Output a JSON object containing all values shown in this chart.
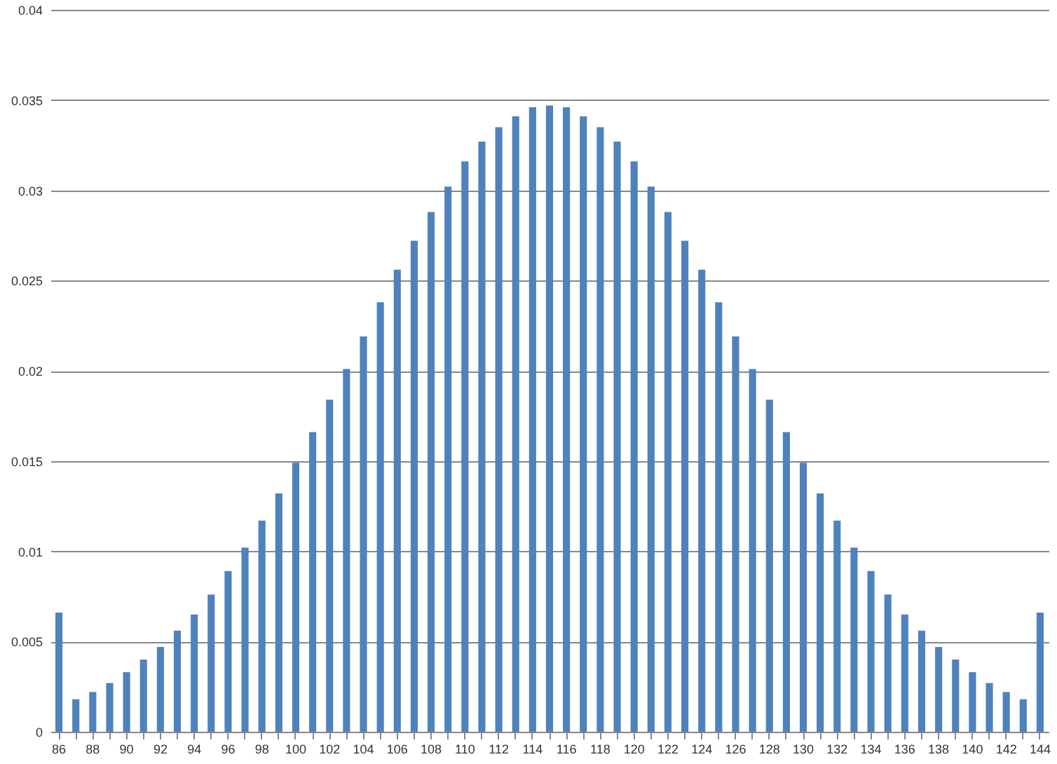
{
  "chart_data": {
    "type": "bar",
    "categories": [
      "86",
      null,
      "88",
      null,
      "90",
      null,
      "92",
      null,
      "94",
      null,
      "96",
      null,
      "98",
      null,
      "100",
      null,
      "102",
      null,
      "104",
      null,
      "106",
      null,
      "108",
      null,
      "110",
      null,
      "112",
      null,
      "114",
      null,
      "116",
      null,
      "118",
      null,
      "120",
      null,
      "122",
      null,
      "124",
      null,
      "126",
      null,
      "128",
      null,
      "130",
      null,
      "132",
      null,
      "134",
      null,
      "136",
      null,
      "138",
      null,
      "140",
      null,
      "142",
      null,
      "144"
    ],
    "values": [
      0.0066,
      0.0018,
      0.0022,
      0.0027,
      0.0033,
      0.004,
      0.0047,
      0.0056,
      0.0065,
      0.0076,
      0.0089,
      0.0102,
      0.0117,
      0.0132,
      0.0149,
      0.0166,
      0.0184,
      0.0201,
      0.0219,
      0.0238,
      0.0256,
      0.0272,
      0.0288,
      0.0302,
      0.0316,
      0.0327,
      0.0335,
      0.0341,
      0.0346,
      0.0347,
      0.0346,
      0.0341,
      0.0335,
      0.0327,
      0.0316,
      0.0302,
      0.0288,
      0.0272,
      0.0256,
      0.0238,
      0.0219,
      0.0201,
      0.0184,
      0.0166,
      0.0149,
      0.0132,
      0.0117,
      0.0102,
      0.0089,
      0.0076,
      0.0065,
      0.0056,
      0.0047,
      0.004,
      0.0033,
      0.0027,
      0.0022,
      0.0018,
      0.0066
    ],
    "color": "#4f81bd",
    "ylim": [
      0,
      0.04
    ],
    "yticks": [
      0,
      0.005,
      0.01,
      0.015,
      0.02,
      0.025,
      0.03,
      0.035,
      0.04
    ],
    "grid": "y"
  }
}
